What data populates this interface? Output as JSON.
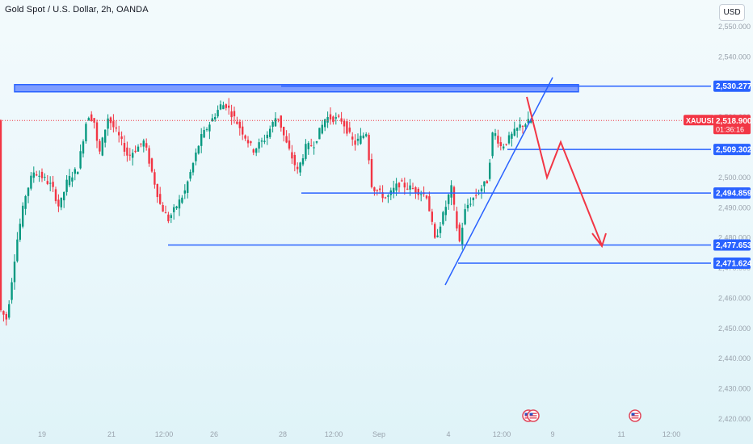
{
  "header": {
    "legend_title": "Gold Spot / U.S. Dollar, 2h, OANDA",
    "currency_button": "USD"
  },
  "price_axis": {
    "ticks": [
      "2,550.000",
      "2,540.000",
      "2,530.000",
      "2,520.000",
      "2,510.000",
      "2,500.000",
      "2,490.000",
      "2,480.000",
      "2,470.000",
      "2,460.000",
      "2,450.000",
      "2,440.000",
      "2,430.000",
      "2,420.000"
    ],
    "tick_values": [
      2550,
      2540,
      2530,
      2520,
      2510,
      2500,
      2490,
      2480,
      2470,
      2460,
      2450,
      2440,
      2430,
      2420
    ]
  },
  "time_axis": {
    "labels": [
      "19",
      "21",
      "12:00",
      "26",
      "28",
      "12:00",
      "Sep",
      "4",
      "12:00",
      "9",
      "11",
      "12:00"
    ]
  },
  "symbol_badge": {
    "symbol": "XAUUSD",
    "price": "2,518.900",
    "countdown": "01:36:16",
    "color": "#f23645",
    "price_value": 2518.9
  },
  "levels": [
    {
      "label": "2,530.277",
      "value": 2530.277,
      "color": "#2962ff"
    },
    {
      "label": "2,509.302",
      "value": 2509.302,
      "color": "#2962ff"
    },
    {
      "label": "2,494.859",
      "value": 2494.859,
      "color": "#2962ff"
    },
    {
      "label": "2,477.653",
      "value": 2477.653,
      "color": "#2962ff"
    },
    {
      "label": "2,471.624",
      "value": 2471.624,
      "color": "#2962ff"
    }
  ],
  "resistance_zone": {
    "top_value": 2530.8,
    "bottom_value": 2528.4,
    "color": "#2962ff"
  },
  "colors": {
    "up": "#089981",
    "down": "#f23645",
    "accent": "#2962ff",
    "projection": "#f23645"
  },
  "events": [
    {
      "icon": "us-flag-icon"
    },
    {
      "icon": "us-flag-icon"
    },
    {
      "icon": "us-flag-icon"
    }
  ]
}
